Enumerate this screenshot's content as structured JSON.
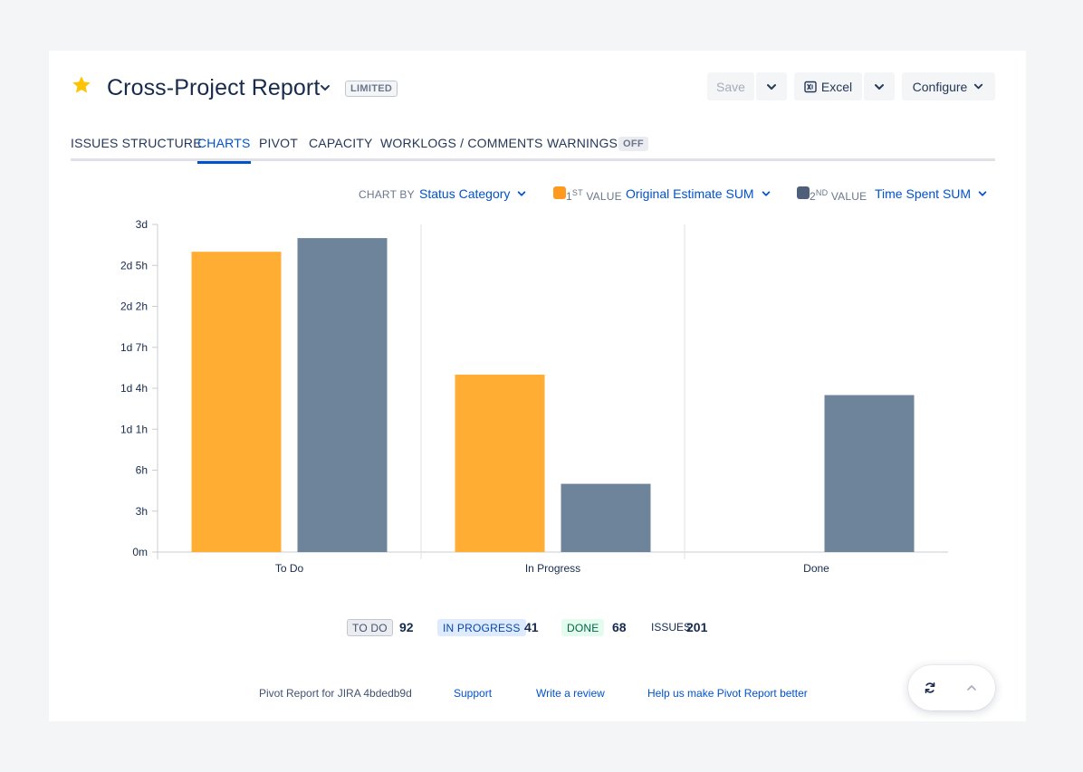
{
  "header": {
    "title": "Cross-Project Report",
    "badge": "LIMITED",
    "save_label": "Save",
    "excel_label": "Excel",
    "configure_label": "Configure"
  },
  "tabs": [
    {
      "label": "ISSUES STRUCTURE",
      "active": false
    },
    {
      "label": "CHARTS",
      "active": true
    },
    {
      "label": "PIVOT",
      "active": false
    },
    {
      "label": "CAPACITY",
      "active": false
    },
    {
      "label": "WORKLOGS / COMMENTS",
      "active": false
    },
    {
      "label": "WARNINGS",
      "active": false
    }
  ],
  "warnings_badge": "OFF",
  "controls": {
    "chart_by_label": "CHART BY",
    "chart_by_value": "Status Category",
    "first_value_prefix": "1",
    "first_value_sup": "ST",
    "first_value_suffix": " VALUE",
    "first_value": "Original Estimate SUM",
    "second_value_prefix": "2",
    "second_value_sup": "ND",
    "second_value_suffix": " VALUE",
    "second_value": "Time Spent SUM"
  },
  "colors": {
    "accent": "#0052cc",
    "series1": "#ffad33",
    "series2": "#6e849b",
    "swatch1": "#ff991f",
    "swatch2": "#505f79"
  },
  "chart_data": {
    "type": "bar",
    "categories": [
      "To Do",
      "In Progress",
      "Done"
    ],
    "series": [
      {
        "name": "Original Estimate SUM",
        "values": [
          66,
          39,
          0
        ]
      },
      {
        "name": "Time Spent SUM",
        "values": [
          69,
          15,
          34.5
        ]
      }
    ],
    "units": "hours",
    "ylim": [
      0,
      72
    ],
    "yticks": [
      {
        "value": 0,
        "label": "0m"
      },
      {
        "value": 9,
        "label": "3h"
      },
      {
        "value": 18,
        "label": "6h"
      },
      {
        "value": 27,
        "label": "1d 1h"
      },
      {
        "value": 36,
        "label": "1d 4h"
      },
      {
        "value": 45,
        "label": "1d 7h"
      },
      {
        "value": 54,
        "label": "2d 2h"
      },
      {
        "value": 63,
        "label": "2d 5h"
      },
      {
        "value": 72,
        "label": "3d"
      }
    ],
    "grid": false
  },
  "summary": [
    {
      "label": "TO DO",
      "count": "92",
      "bg": "#ebecf0",
      "fg": "#42526e",
      "border": "#c1c7d0"
    },
    {
      "label": "IN PROGRESS",
      "count": "41",
      "bg": "#deebff",
      "fg": "#0747a6",
      "border": "#deebff"
    },
    {
      "label": "DONE",
      "count": "68",
      "bg": "#e3fcef",
      "fg": "#006644",
      "border": "#e3fcef"
    }
  ],
  "issues_label": "ISSUES",
  "issues_count": "201",
  "footer": {
    "version": "Pivot Report for JIRA 4bdedb9d",
    "support": "Support",
    "review": "Write a review",
    "feedback": "Help us make Pivot Report better"
  }
}
